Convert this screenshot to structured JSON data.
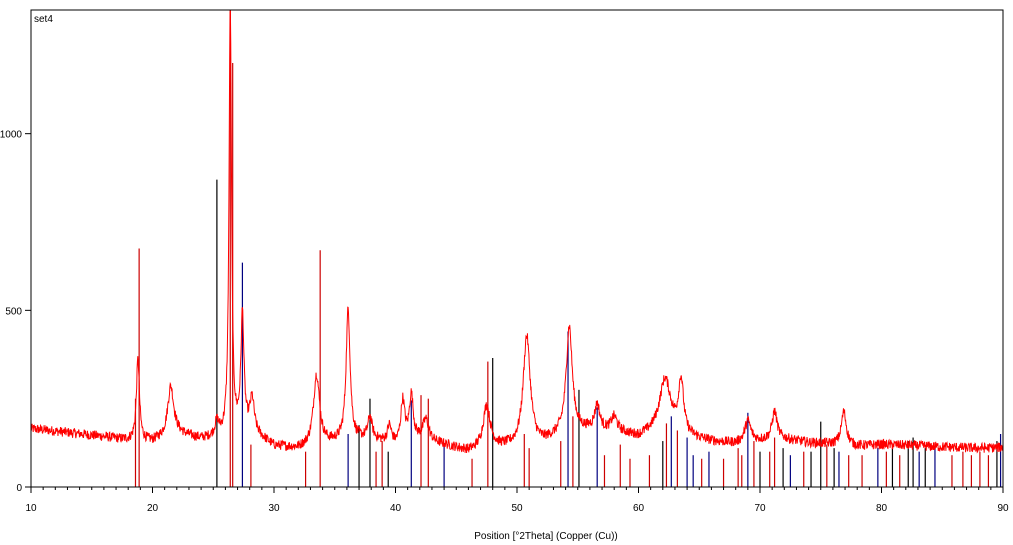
{
  "chart_data": {
    "type": "line",
    "title": "",
    "series_label": "set4",
    "xlabel": "Position [°2Theta] (Copper (Cu))",
    "ylabel": "",
    "xlim": [
      10,
      90
    ],
    "ylim": [
      0,
      1350
    ],
    "x_major_ticks": [
      10,
      20,
      30,
      40,
      50,
      60,
      70,
      80,
      90
    ],
    "x_tick_labels": [
      "10",
      "20",
      "30",
      "40",
      "50",
      "60",
      "70",
      "80",
      "90"
    ],
    "y_major_ticks": [
      0,
      500,
      1000
    ],
    "y_tick_labels": [
      "0",
      "500",
      "1000"
    ],
    "grid": false,
    "legend": "none",
    "baseline": [
      [
        10,
        165
      ],
      [
        12,
        158
      ],
      [
        14,
        150
      ],
      [
        16,
        142
      ],
      [
        18,
        132
      ],
      [
        20,
        128
      ],
      [
        22,
        150
      ],
      [
        24,
        135
      ],
      [
        26,
        140
      ],
      [
        28,
        160
      ],
      [
        30,
        115
      ],
      [
        32,
        108
      ],
      [
        34,
        120
      ],
      [
        36,
        130
      ],
      [
        38,
        135
      ],
      [
        40,
        115
      ],
      [
        42,
        130
      ],
      [
        44,
        118
      ],
      [
        46,
        100
      ],
      [
        48,
        110
      ],
      [
        50,
        112
      ],
      [
        52,
        120
      ],
      [
        54,
        150
      ],
      [
        56,
        160
      ],
      [
        58,
        155
      ],
      [
        60,
        140
      ],
      [
        62,
        160
      ],
      [
        64,
        140
      ],
      [
        66,
        128
      ],
      [
        68,
        122
      ],
      [
        70,
        130
      ],
      [
        72,
        135
      ],
      [
        74,
        125
      ],
      [
        76,
        120
      ],
      [
        78,
        115
      ],
      [
        80,
        120
      ],
      [
        82,
        118
      ],
      [
        84,
        115
      ],
      [
        86,
        112
      ],
      [
        88,
        110
      ],
      [
        90,
        112
      ]
    ],
    "peaks": [
      {
        "x": 18.8,
        "height": 230,
        "width": 0.15
      },
      {
        "x": 21.5,
        "height": 140,
        "width": 0.3
      },
      {
        "x": 25.3,
        "height": 40,
        "width": 0.2
      },
      {
        "x": 26.4,
        "height": 1230,
        "width": 0.12
      },
      {
        "x": 27.4,
        "height": 330,
        "width": 0.15
      },
      {
        "x": 28.2,
        "height": 90,
        "width": 0.2
      },
      {
        "x": 33.5,
        "height": 200,
        "width": 0.3
      },
      {
        "x": 36.1,
        "height": 370,
        "width": 0.2
      },
      {
        "x": 37.9,
        "height": 60,
        "width": 0.2
      },
      {
        "x": 39.5,
        "height": 50,
        "width": 0.2
      },
      {
        "x": 40.6,
        "height": 120,
        "width": 0.2
      },
      {
        "x": 41.3,
        "height": 130,
        "width": 0.2
      },
      {
        "x": 42.5,
        "height": 60,
        "width": 0.3
      },
      {
        "x": 47.5,
        "height": 120,
        "width": 0.35
      },
      {
        "x": 50.8,
        "height": 310,
        "width": 0.35
      },
      {
        "x": 54.3,
        "height": 300,
        "width": 0.3
      },
      {
        "x": 56.6,
        "height": 70,
        "width": 0.25
      },
      {
        "x": 58.0,
        "height": 40,
        "width": 0.3
      },
      {
        "x": 62.2,
        "height": 145,
        "width": 0.55
      },
      {
        "x": 63.5,
        "height": 150,
        "width": 0.25
      },
      {
        "x": 69.0,
        "height": 60,
        "width": 0.3
      },
      {
        "x": 71.2,
        "height": 80,
        "width": 0.25
      },
      {
        "x": 76.9,
        "height": 95,
        "width": 0.25
      }
    ],
    "noise_amplitude": 14,
    "reference_lines": [
      {
        "x": 18.6,
        "height": 250,
        "color": "#cc0000"
      },
      {
        "x": 18.9,
        "height": 675,
        "color": "#cc0000"
      },
      {
        "x": 25.3,
        "height": 870,
        "color": "#000000"
      },
      {
        "x": 26.4,
        "height": 1350,
        "color": "#cc0000"
      },
      {
        "x": 26.6,
        "height": 1200,
        "color": "#cc0000"
      },
      {
        "x": 27.4,
        "height": 635,
        "color": "#000080"
      },
      {
        "x": 28.1,
        "height": 120,
        "color": "#cc0000"
      },
      {
        "x": 32.6,
        "height": 100,
        "color": "#cc0000"
      },
      {
        "x": 33.8,
        "height": 670,
        "color": "#cc0000"
      },
      {
        "x": 36.1,
        "height": 150,
        "color": "#000080"
      },
      {
        "x": 37.0,
        "height": 175,
        "color": "#000000"
      },
      {
        "x": 37.9,
        "height": 250,
        "color": "#000000"
      },
      {
        "x": 38.4,
        "height": 100,
        "color": "#cc0000"
      },
      {
        "x": 38.9,
        "height": 130,
        "color": "#cc0000"
      },
      {
        "x": 39.4,
        "height": 100,
        "color": "#000000"
      },
      {
        "x": 41.3,
        "height": 245,
        "color": "#000080"
      },
      {
        "x": 42.1,
        "height": 260,
        "color": "#cc0000"
      },
      {
        "x": 42.7,
        "height": 250,
        "color": "#cc0000"
      },
      {
        "x": 44.0,
        "height": 120,
        "color": "#000080"
      },
      {
        "x": 46.3,
        "height": 80,
        "color": "#cc0000"
      },
      {
        "x": 47.6,
        "height": 355,
        "color": "#cc0000"
      },
      {
        "x": 48.0,
        "height": 365,
        "color": "#000000"
      },
      {
        "x": 50.6,
        "height": 150,
        "color": "#cc0000"
      },
      {
        "x": 51.0,
        "height": 110,
        "color": "#cc0000"
      },
      {
        "x": 53.6,
        "height": 130,
        "color": "#cc0000"
      },
      {
        "x": 54.2,
        "height": 440,
        "color": "#000080"
      },
      {
        "x": 54.6,
        "height": 200,
        "color": "#cc0000"
      },
      {
        "x": 55.1,
        "height": 275,
        "color": "#000000"
      },
      {
        "x": 56.6,
        "height": 225,
        "color": "#000080"
      },
      {
        "x": 57.2,
        "height": 90,
        "color": "#cc0000"
      },
      {
        "x": 58.5,
        "height": 120,
        "color": "#cc0000"
      },
      {
        "x": 59.3,
        "height": 80,
        "color": "#cc0000"
      },
      {
        "x": 60.9,
        "height": 90,
        "color": "#cc0000"
      },
      {
        "x": 62.0,
        "height": 130,
        "color": "#000000"
      },
      {
        "x": 62.3,
        "height": 180,
        "color": "#cc0000"
      },
      {
        "x": 62.7,
        "height": 200,
        "color": "#000080"
      },
      {
        "x": 63.2,
        "height": 160,
        "color": "#cc0000"
      },
      {
        "x": 64.0,
        "height": 140,
        "color": "#000080"
      },
      {
        "x": 64.5,
        "height": 90,
        "color": "#000080"
      },
      {
        "x": 65.2,
        "height": 80,
        "color": "#cc0000"
      },
      {
        "x": 65.8,
        "height": 100,
        "color": "#000080"
      },
      {
        "x": 67.0,
        "height": 80,
        "color": "#cc0000"
      },
      {
        "x": 68.2,
        "height": 110,
        "color": "#cc0000"
      },
      {
        "x": 68.5,
        "height": 90,
        "color": "#cc0000"
      },
      {
        "x": 69.0,
        "height": 210,
        "color": "#000080"
      },
      {
        "x": 69.5,
        "height": 130,
        "color": "#cc0000"
      },
      {
        "x": 70.0,
        "height": 100,
        "color": "#000000"
      },
      {
        "x": 70.8,
        "height": 100,
        "color": "#cc0000"
      },
      {
        "x": 71.2,
        "height": 140,
        "color": "#cc0000"
      },
      {
        "x": 71.9,
        "height": 110,
        "color": "#000000"
      },
      {
        "x": 72.5,
        "height": 90,
        "color": "#000080"
      },
      {
        "x": 73.6,
        "height": 100,
        "color": "#cc0000"
      },
      {
        "x": 74.2,
        "height": 100,
        "color": "#000000"
      },
      {
        "x": 75.0,
        "height": 185,
        "color": "#000000"
      },
      {
        "x": 75.5,
        "height": 120,
        "color": "#cc0000"
      },
      {
        "x": 76.1,
        "height": 110,
        "color": "#000000"
      },
      {
        "x": 76.5,
        "height": 100,
        "color": "#000080"
      },
      {
        "x": 77.3,
        "height": 90,
        "color": "#cc0000"
      },
      {
        "x": 78.4,
        "height": 90,
        "color": "#cc0000"
      },
      {
        "x": 79.7,
        "height": 110,
        "color": "#000080"
      },
      {
        "x": 80.4,
        "height": 100,
        "color": "#cc0000"
      },
      {
        "x": 80.9,
        "height": 110,
        "color": "#000000"
      },
      {
        "x": 81.5,
        "height": 90,
        "color": "#cc0000"
      },
      {
        "x": 82.2,
        "height": 130,
        "color": "#000000"
      },
      {
        "x": 82.6,
        "height": 140,
        "color": "#000000"
      },
      {
        "x": 83.1,
        "height": 100,
        "color": "#000080"
      },
      {
        "x": 83.6,
        "height": 110,
        "color": "#000000"
      },
      {
        "x": 84.4,
        "height": 110,
        "color": "#000080"
      },
      {
        "x": 85.8,
        "height": 90,
        "color": "#cc0000"
      },
      {
        "x": 86.7,
        "height": 100,
        "color": "#cc0000"
      },
      {
        "x": 87.4,
        "height": 90,
        "color": "#cc0000"
      },
      {
        "x": 88.1,
        "height": 100,
        "color": "#cc0000"
      },
      {
        "x": 88.8,
        "height": 90,
        "color": "#cc0000"
      },
      {
        "x": 89.5,
        "height": 130,
        "color": "#000000"
      },
      {
        "x": 89.8,
        "height": 150,
        "color": "#000080"
      }
    ],
    "colors": {
      "pattern": "#ff0000",
      "reference_default": "#cc0000",
      "axis": "#000000",
      "plot_background": "#ffffff"
    }
  }
}
